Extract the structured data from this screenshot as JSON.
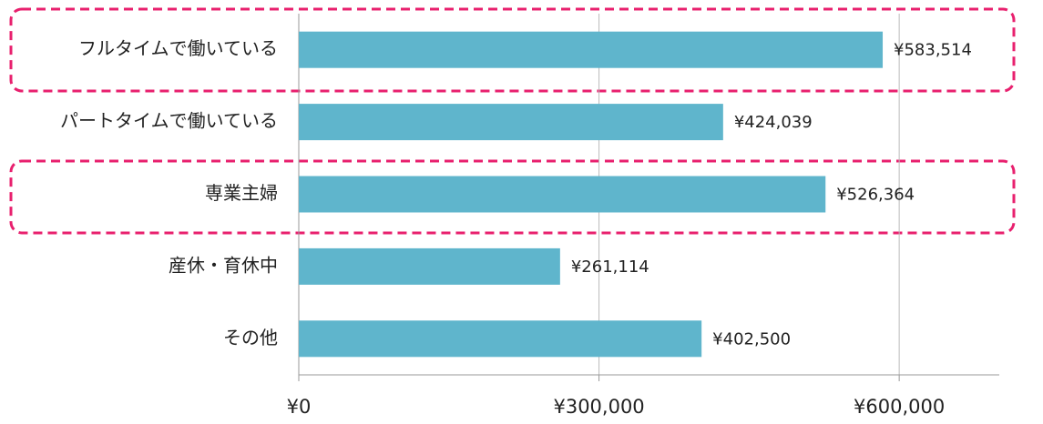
{
  "chart_data": {
    "type": "bar",
    "orientation": "horizontal",
    "categories": [
      "フルタイムで働いている",
      "パートタイムで働いている",
      "専業主婦",
      "産休・育休中",
      "その他"
    ],
    "values": [
      583514,
      424039,
      526364,
      261114,
      402500
    ],
    "value_labels": [
      "¥583,514",
      "¥424,039",
      "¥526,364",
      "¥261,114",
      "¥402,500"
    ],
    "color": "#5fb5cc",
    "xlim": [
      0,
      700000
    ],
    "xticks": [
      {
        "value": 0,
        "label": "¥0"
      },
      {
        "value": 300000,
        "label": "¥300,000"
      },
      {
        "value": 600000,
        "label": "¥600,000"
      }
    ],
    "grid": true
  }
}
